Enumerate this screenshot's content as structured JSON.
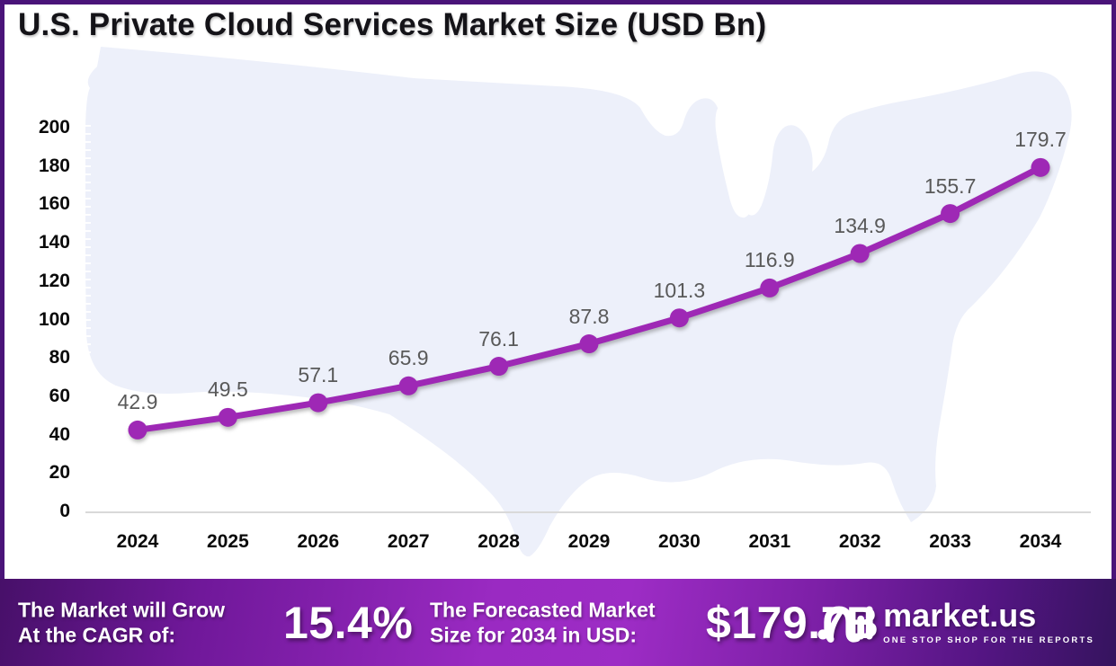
{
  "header": {
    "title": "U.S. Private Cloud Services Market Size (USD Bn)"
  },
  "chart_data": {
    "type": "line",
    "title": "U.S. Private Cloud Services Market Size (USD Bn)",
    "categories": [
      "2024",
      "2025",
      "2026",
      "2027",
      "2028",
      "2029",
      "2030",
      "2031",
      "2032",
      "2033",
      "2034"
    ],
    "series": [
      {
        "name": "U.S. Private Cloud Services Market Size (USD Bn)",
        "values": [
          42.9,
          49.5,
          57.1,
          65.9,
          76.1,
          87.8,
          101.3,
          116.9,
          134.9,
          155.7,
          179.7
        ]
      }
    ],
    "xlabel": "",
    "ylabel": "",
    "ylim": [
      0,
      200
    ],
    "ytick_step": 20,
    "grid": false,
    "legend": "none",
    "data_labels": true,
    "line_color": "#9E28B5",
    "marker": "circle",
    "data_label_color": "#595959",
    "axis_line_color": "#D9D9D9",
    "background_motif": "us-map-silhouette",
    "map_fill": "#EDF0FA"
  },
  "frame": {
    "border_color": "#4A1479"
  },
  "footer": {
    "cagr_label_line1": "The Market will Grow",
    "cagr_label_line2": "At the CAGR of:",
    "cagr_value": "15.4%",
    "forecast_label_line1": "The Forecasted Market",
    "forecast_label_line2": "Size for 2034 in USD:",
    "forecast_value": "$179.7B",
    "brand_name": "market.us",
    "brand_tagline": "ONE STOP SHOP FOR THE REPORTS",
    "gradient_colors": [
      "#471069",
      "#9D2CC5",
      "#35145E"
    ]
  }
}
